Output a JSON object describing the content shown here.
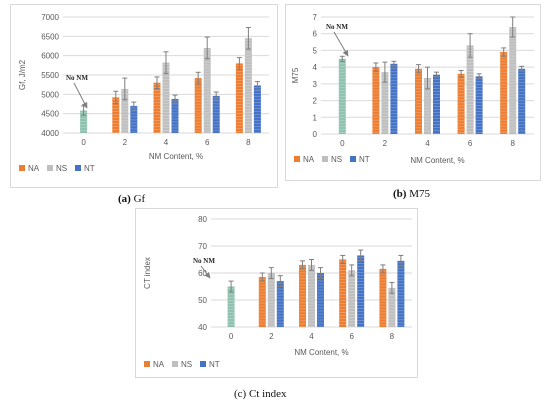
{
  "colors": {
    "NA": "#ed7d31",
    "NS": "#bfbfbf",
    "NT": "#4472c4",
    "control": "#8fc3b0",
    "grid": "#d9d9d9",
    "axis_text": "#595959",
    "error": "#7f7f7f"
  },
  "captions": {
    "a": {
      "letter": "(a)",
      "name": "Gf"
    },
    "b": {
      "letter": "(b)",
      "name": "M75"
    },
    "c": {
      "letter": "(c)",
      "name": "Ct index"
    }
  },
  "chart_data": [
    {
      "id": "a",
      "type": "bar",
      "title": "",
      "xlabel": "NM Content, %",
      "ylabel": "Gf, J/m2",
      "ylim": [
        4000,
        7000
      ],
      "yticks": [
        4000,
        4500,
        5000,
        5500,
        6000,
        6500,
        7000
      ],
      "grid": true,
      "legend_position": "bottom-left",
      "annotation": "No NM",
      "control": {
        "category": "0",
        "value": 4580,
        "error": 120
      },
      "categories": [
        "2",
        "4",
        "6",
        "8"
      ],
      "series": [
        {
          "name": "NA",
          "values": [
            4920,
            5300,
            5420,
            5800
          ],
          "errors": [
            160,
            150,
            150,
            150
          ]
        },
        {
          "name": "NS",
          "values": [
            5140,
            5820,
            6200,
            6450
          ],
          "errors": [
            280,
            280,
            280,
            280
          ]
        },
        {
          "name": "NT",
          "values": [
            4700,
            4880,
            4960,
            5230
          ],
          "errors": [
            100,
            100,
            100,
            100
          ]
        }
      ]
    },
    {
      "id": "b",
      "type": "bar",
      "title": "",
      "xlabel": "NM Content, %",
      "ylabel": "M75",
      "ylim": [
        0,
        7
      ],
      "yticks": [
        0,
        1,
        2,
        3,
        4,
        5,
        6,
        7
      ],
      "grid": true,
      "legend_position": "bottom-left",
      "annotation": "No NM",
      "control": {
        "category": "0",
        "value": 4.5,
        "error": 0.15
      },
      "categories": [
        "2",
        "4",
        "6",
        "8"
      ],
      "series": [
        {
          "name": "NA",
          "values": [
            4.0,
            3.9,
            3.6,
            4.9
          ],
          "errors": [
            0.25,
            0.25,
            0.2,
            0.25
          ]
        },
        {
          "name": "NS",
          "values": [
            3.7,
            3.35,
            5.3,
            6.4
          ],
          "errors": [
            0.6,
            0.65,
            0.7,
            0.6
          ]
        },
        {
          "name": "NT",
          "values": [
            4.2,
            3.55,
            3.45,
            3.9
          ],
          "errors": [
            0.15,
            0.15,
            0.15,
            0.15
          ]
        }
      ]
    },
    {
      "id": "c",
      "type": "bar",
      "title": "",
      "xlabel": "NM Content, %",
      "ylabel": "CT index",
      "ylim": [
        40,
        80
      ],
      "yticks": [
        40,
        50,
        60,
        70,
        80
      ],
      "grid": true,
      "legend_position": "bottom-left",
      "annotation": "No NM",
      "control": {
        "category": "0",
        "value": 55,
        "error": 2
      },
      "categories": [
        "2",
        "4",
        "6",
        "8"
      ],
      "series": [
        {
          "name": "NA",
          "values": [
            58.5,
            63,
            65,
            61.5
          ],
          "errors": [
            1.5,
            1.5,
            1.5,
            1.5
          ]
        },
        {
          "name": "NS",
          "values": [
            60,
            63,
            61,
            54.5
          ],
          "errors": [
            2,
            2,
            2,
            2
          ]
        },
        {
          "name": "NT",
          "values": [
            57,
            60,
            66.5,
            64.5
          ],
          "errors": [
            2,
            2,
            2,
            2
          ]
        }
      ]
    }
  ]
}
